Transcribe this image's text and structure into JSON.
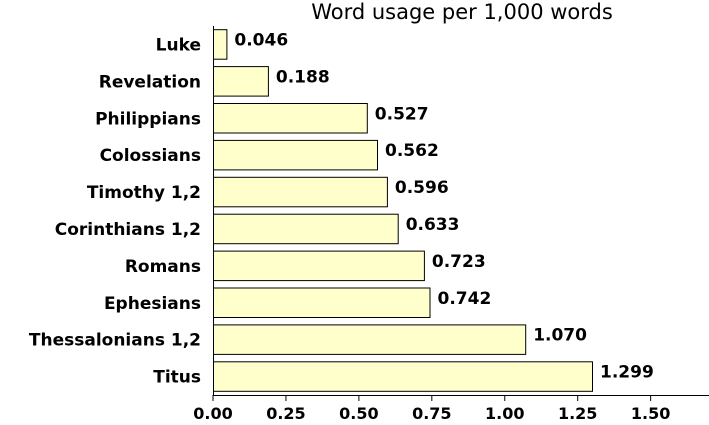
{
  "chart_data": {
    "type": "bar",
    "orientation": "horizontal",
    "title": "Word usage per 1,000 words",
    "xlabel": "",
    "ylabel": "",
    "categories": [
      "Luke",
      "Revelation",
      "Philippians",
      "Colossians",
      "Timothy 1,2",
      "Corinthians 1,2",
      "Romans",
      "Ephesians",
      "Thessalonians 1,2",
      "Titus"
    ],
    "values": [
      0.046,
      0.188,
      0.527,
      0.562,
      0.596,
      0.633,
      0.723,
      0.742,
      1.07,
      1.299
    ],
    "value_labels": [
      "0.046",
      "0.188",
      "0.527",
      "0.562",
      "0.596",
      "0.633",
      "0.723",
      "0.742",
      "1.070",
      "1.299"
    ],
    "xlim": [
      0,
      1.7
    ],
    "xticks": [
      0,
      0.25,
      0.5,
      0.75,
      1.0,
      1.25,
      1.5
    ],
    "xtick_labels": [
      "0.00",
      "0.25",
      "0.50",
      "0.75",
      "1.00",
      "1.25",
      "1.50"
    ],
    "grid": false,
    "bar_color": "#ffffcc",
    "bar_edge_color": "#000000"
  }
}
